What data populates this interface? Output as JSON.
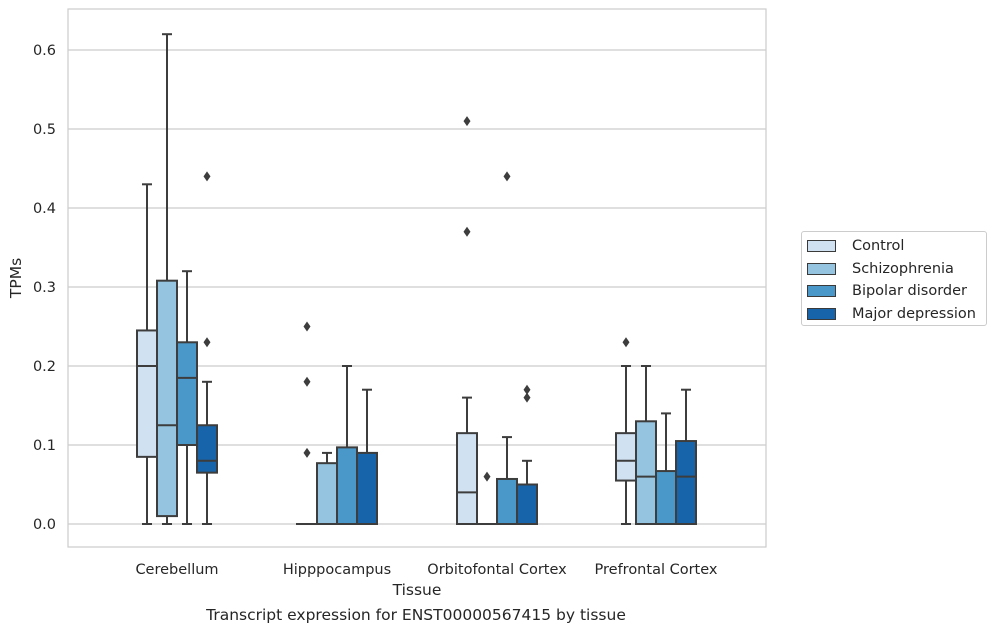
{
  "chart_data": {
    "type": "boxplot",
    "xlabel": "Tissue",
    "ylabel": "TPMs",
    "caption": "Transcript expression for ENST00000567415 by tissue",
    "ylim": [
      -0.03,
      0.65
    ],
    "yticks": [
      "0.0",
      "0.1",
      "0.2",
      "0.3",
      "0.4",
      "0.5",
      "0.6"
    ],
    "categories": [
      "Cerebellum",
      "Hipppocampus",
      "Orbitofontal Cortex",
      "Prefrontal Cortex"
    ],
    "grid": "horizontal",
    "legend_position": "right",
    "series": [
      {
        "name": "Control",
        "color": "#d0e1f2",
        "boxes": [
          {
            "whisker_low": 0,
            "q1": 0.085,
            "median": 0.2,
            "q3": 0.245,
            "whisker_high": 0.43,
            "outliers": []
          },
          {
            "whisker_low": 0,
            "q1": 0,
            "median": 0,
            "q3": 0,
            "whisker_high": 0,
            "outliers": [
              0.09,
              0.18,
              0.25
            ]
          },
          {
            "whisker_low": 0,
            "q1": 0,
            "median": 0.04,
            "q3": 0.115,
            "whisker_high": 0.16,
            "outliers": [
              0.37,
              0.51
            ]
          },
          {
            "whisker_low": 0,
            "q1": 0.055,
            "median": 0.08,
            "q3": 0.115,
            "whisker_high": 0.2,
            "outliers": [
              0.23
            ]
          }
        ]
      },
      {
        "name": "Schizophrenia",
        "color": "#94c4df",
        "boxes": [
          {
            "whisker_low": 0,
            "q1": 0.01,
            "median": 0.125,
            "q3": 0.308,
            "whisker_high": 0.62,
            "outliers": []
          },
          {
            "whisker_low": 0,
            "q1": 0,
            "median": 0,
            "q3": 0.077,
            "whisker_high": 0.09,
            "outliers": []
          },
          {
            "whisker_low": 0,
            "q1": 0,
            "median": 0,
            "q3": 0,
            "whisker_high": 0,
            "outliers": [
              0.06
            ]
          },
          {
            "whisker_low": 0,
            "q1": 0,
            "median": 0.06,
            "q3": 0.13,
            "whisker_high": 0.2,
            "outliers": []
          }
        ]
      },
      {
        "name": "Bipolar disorder",
        "color": "#4a98c9",
        "boxes": [
          {
            "whisker_low": 0,
            "q1": 0.1,
            "median": 0.185,
            "q3": 0.23,
            "whisker_high": 0.32,
            "outliers": []
          },
          {
            "whisker_low": 0,
            "q1": 0,
            "median": 0,
            "q3": 0.097,
            "whisker_high": 0.2,
            "outliers": []
          },
          {
            "whisker_low": 0,
            "q1": 0,
            "median": 0,
            "q3": 0.057,
            "whisker_high": 0.11,
            "outliers": [
              0.44
            ]
          },
          {
            "whisker_low": 0,
            "q1": 0,
            "median": 0,
            "q3": 0.067,
            "whisker_high": 0.14,
            "outliers": []
          }
        ]
      },
      {
        "name": "Major depression",
        "color": "#1764ab",
        "boxes": [
          {
            "whisker_low": 0,
            "q1": 0.065,
            "median": 0.08,
            "q3": 0.125,
            "whisker_high": 0.18,
            "outliers": [
              0.23,
              0.44
            ]
          },
          {
            "whisker_low": 0,
            "q1": 0,
            "median": 0,
            "q3": 0.09,
            "whisker_high": 0.17,
            "outliers": []
          },
          {
            "whisker_low": 0,
            "q1": 0,
            "median": 0,
            "q3": 0.05,
            "whisker_high": 0.08,
            "outliers": [
              0.16,
              0.17
            ]
          },
          {
            "whisker_low": 0,
            "q1": 0,
            "median": 0.06,
            "q3": 0.105,
            "whisker_high": 0.17,
            "outliers": []
          }
        ]
      }
    ]
  }
}
